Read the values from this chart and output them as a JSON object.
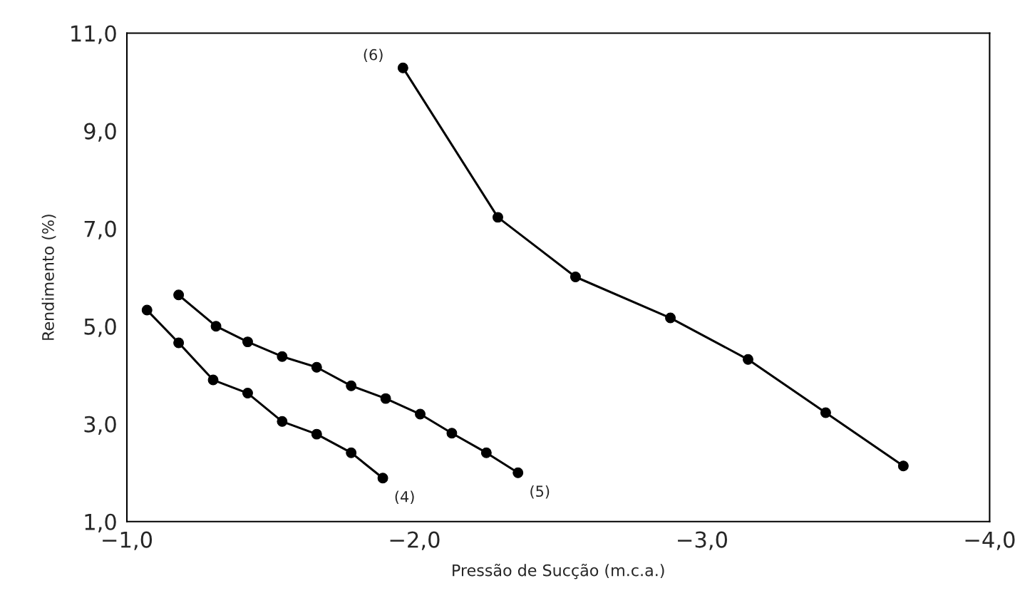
{
  "chart_data": {
    "type": "line",
    "xlabel": "Pressão de Sucção (m.c.a.)",
    "ylabel": "Rendimento (%)",
    "xlim": [
      -1.0,
      -4.0
    ],
    "xticks": [
      {
        "value": -1.0,
        "label": "−1,0"
      },
      {
        "value": -2.0,
        "label": "−2,0"
      },
      {
        "value": -3.0,
        "label": "−3,0"
      },
      {
        "value": -4.0,
        "label": "−4,0"
      }
    ],
    "ylim": [
      1.0,
      11.0
    ],
    "yticks": [
      {
        "value": 1.0,
        "label": "1,0"
      },
      {
        "value": 3.0,
        "label": "3,0"
      },
      {
        "value": 5.0,
        "label": "5,0"
      },
      {
        "value": 7.0,
        "label": "7,0"
      },
      {
        "value": 9.0,
        "label": "9,0"
      },
      {
        "value": 11.0,
        "label": "11,0"
      }
    ],
    "grid": false,
    "marker": "circle",
    "line_style": "solid",
    "series": [
      {
        "color": "#000000",
        "x": [
          -1.07,
          -1.18,
          -1.3,
          -1.42,
          -1.54,
          -1.66,
          -1.78,
          -1.89
        ],
        "values": [
          5.33,
          4.66,
          3.9,
          3.63,
          3.05,
          2.79,
          2.41,
          1.89
        ]
      },
      {
        "color": "#000000",
        "x": [
          -1.18,
          -1.31,
          -1.42,
          -1.54,
          -1.66,
          -1.78,
          -1.9,
          -2.02,
          -2.13,
          -2.25,
          -2.36
        ],
        "values": [
          5.64,
          5.0,
          4.68,
          4.38,
          4.16,
          3.78,
          3.52,
          3.2,
          2.81,
          2.41,
          2.0
        ]
      },
      {
        "color": "#000000",
        "x": [
          -1.96,
          -2.29,
          -2.56,
          -2.89,
          -3.16,
          -3.43,
          -3.7
        ],
        "values": [
          10.29,
          7.23,
          6.01,
          5.17,
          4.32,
          3.23,
          2.14
        ]
      }
    ],
    "annotations": [
      {
        "text": "(6)",
        "x": -1.96,
        "y": 10.29
      },
      {
        "text": "(5)",
        "x": -2.36,
        "y": 2.0
      },
      {
        "text": "(4)",
        "x": -1.89,
        "y": 1.89
      }
    ]
  }
}
